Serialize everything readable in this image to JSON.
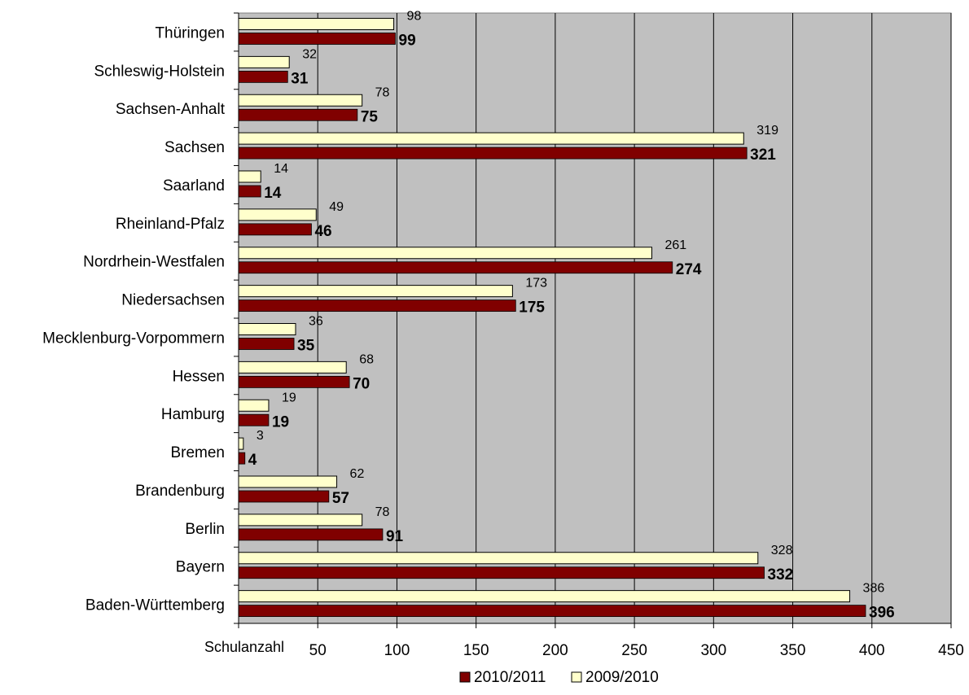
{
  "chart_data": {
    "type": "bar",
    "orientation": "horizontal",
    "categories": [
      "Thüringen",
      "Schleswig-Holstein",
      "Sachsen-Anhalt",
      "Sachsen",
      "Saarland",
      "Rheinland-Pfalz",
      "Nordrhein-Westfalen",
      "Niedersachsen",
      "Mecklenburg-Vorpommern",
      "Hessen",
      "Hamburg",
      "Bremen",
      "Brandenburg",
      "Berlin",
      "Bayern",
      "Baden-Württemberg"
    ],
    "series": [
      {
        "name": "2009/2010",
        "color": "#FFFFCC",
        "values": [
          98,
          32,
          78,
          319,
          14,
          49,
          261,
          173,
          36,
          68,
          19,
          3,
          62,
          78,
          328,
          386
        ]
      },
      {
        "name": "2010/2011",
        "color": "#800000",
        "values": [
          99,
          31,
          75,
          321,
          14,
          46,
          274,
          175,
          35,
          70,
          19,
          4,
          57,
          91,
          332,
          396
        ]
      }
    ],
    "xlabel": "Schulanzahl",
    "ylabel": "",
    "title": "",
    "xlim": [
      0,
      450
    ],
    "xticks": [
      50,
      100,
      150,
      200,
      250,
      300,
      350,
      400,
      450
    ],
    "grid": "vertical",
    "plot_background": "#C0C0C0",
    "legend_position": "bottom",
    "legend": [
      "2010/2011",
      "2009/2010"
    ]
  }
}
